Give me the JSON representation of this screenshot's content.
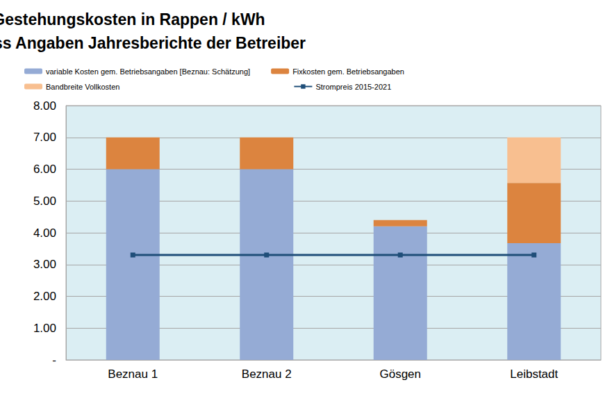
{
  "chart_data": {
    "type": "bar",
    "title": "Gestehungskosten in Rappen / kWh",
    "subtitle": "gemäss Angaben Jahresberichte der Betreiber",
    "categories": [
      "Beznau 1",
      "Beznau 2",
      "Gösgen",
      "Leibstadt"
    ],
    "stacked": true,
    "grid": true,
    "legend": "top",
    "ylim": [
      0,
      8
    ],
    "yticks": [
      {
        "value": 0,
        "label": "-"
      },
      {
        "value": 1,
        "label": "1.00"
      },
      {
        "value": 2,
        "label": "2.00"
      },
      {
        "value": 3,
        "label": "3.00"
      },
      {
        "value": 4,
        "label": "4.00"
      },
      {
        "value": 5,
        "label": "5.00"
      },
      {
        "value": 6,
        "label": "6.00"
      },
      {
        "value": 7,
        "label": "7.00"
      },
      {
        "value": 8,
        "label": "8.00"
      }
    ],
    "series": [
      {
        "name": "variable Kosten gem. Betriebsangaben [Beznau: Schätzung]",
        "type": "bar",
        "color": "#95abd5",
        "values": [
          6.0,
          6.0,
          4.2,
          3.67
        ]
      },
      {
        "name": "Fixkosten gem. Betriebsangaben",
        "type": "bar",
        "color": "#dc843f",
        "values": [
          1.0,
          1.0,
          0.2,
          1.9
        ]
      },
      {
        "name": "Bandbreite Vollkosten",
        "type": "bar",
        "color": "#f8bf90",
        "values": [
          null,
          null,
          null,
          1.43
        ]
      },
      {
        "name": "Strompreis 2015-2021",
        "type": "line",
        "color": "#1f4e79",
        "marker": "square",
        "line_style": "solid",
        "values": [
          3.3,
          3.3,
          3.3,
          3.3
        ]
      }
    ]
  }
}
